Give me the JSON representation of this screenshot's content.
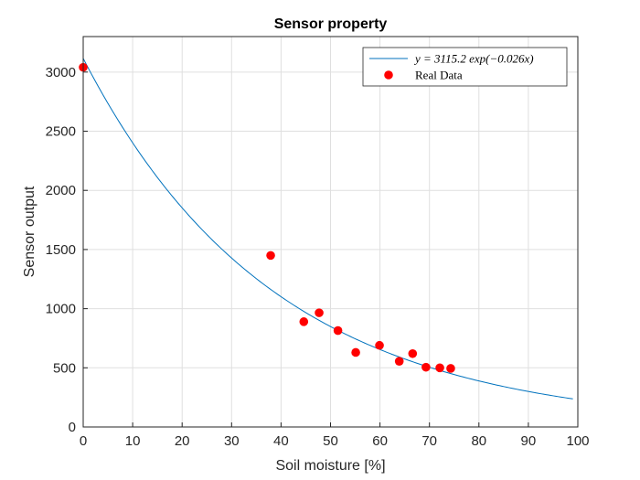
{
  "chart_data": {
    "type": "scatter",
    "title": "Sensor property",
    "xlabel": "Soil moisture [%]",
    "ylabel": "Sensor output",
    "xlim": [
      0,
      100
    ],
    "ylim": [
      0,
      3300
    ],
    "xticks": [
      0,
      10,
      20,
      30,
      40,
      50,
      60,
      70,
      80,
      90,
      100
    ],
    "yticks": [
      0,
      500,
      1000,
      1500,
      2000,
      2500,
      3000
    ],
    "grid": true,
    "legend_position": "top-right",
    "series": [
      {
        "name": "y = 3115.2 exp(−0.026x)",
        "kind": "line",
        "color": "#0072BD",
        "model": {
          "a": 3115.2,
          "b": -0.026,
          "x_range": [
            0,
            99
          ]
        }
      },
      {
        "name": "Real Data",
        "kind": "scatter",
        "color": "#FF0000",
        "x": [
          0,
          37.9,
          44.6,
          47.7,
          51.5,
          55.1,
          59.9,
          63.9,
          66.6,
          69.3,
          72.1,
          74.3
        ],
        "y": [
          3040,
          1450,
          890,
          965,
          815,
          630,
          690,
          555,
          620,
          505,
          500,
          495
        ]
      }
    ]
  }
}
